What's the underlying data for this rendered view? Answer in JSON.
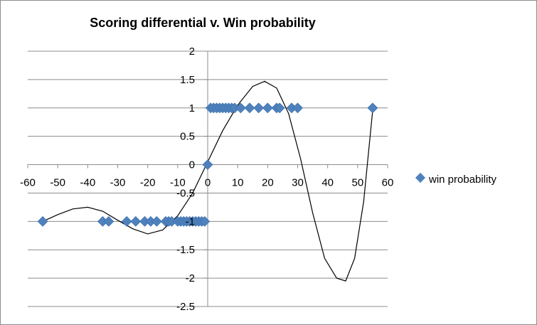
{
  "chart_data": {
    "type": "scatter",
    "title": "Scoring differential v. Win probability",
    "xlabel": "",
    "ylabel": "",
    "xlim": [
      -60,
      60
    ],
    "ylim": [
      -2.5,
      2
    ],
    "x_ticks": [
      -60,
      -50,
      -40,
      -30,
      -20,
      -10,
      0,
      10,
      20,
      30,
      40,
      50,
      60
    ],
    "y_ticks": [
      2,
      1.5,
      1,
      0.5,
      0,
      -0.5,
      -1,
      -1.5,
      -2,
      -2.5
    ],
    "x_tick_labels": [
      "-60",
      "-50",
      "-40",
      "-30",
      "-20",
      "-10",
      "0",
      "10",
      "20",
      "30",
      "40",
      "50",
      "60"
    ],
    "y_tick_labels": [
      "2",
      "1.5",
      "1",
      "0.5",
      "0",
      "-0.5",
      "-1",
      "-1.5",
      "-2",
      "-2.5"
    ],
    "grid": "horizontal",
    "legend_position": "right",
    "marker_color": "#4f81bd",
    "series": [
      {
        "name": "win probability",
        "marker": "diamond",
        "points": [
          {
            "x": -55,
            "y": -1
          },
          {
            "x": -35,
            "y": -1
          },
          {
            "x": -33,
            "y": -1
          },
          {
            "x": -27,
            "y": -1
          },
          {
            "x": -24,
            "y": -1
          },
          {
            "x": -21,
            "y": -1
          },
          {
            "x": -19,
            "y": -1
          },
          {
            "x": -17,
            "y": -1
          },
          {
            "x": -14,
            "y": -1
          },
          {
            "x": -13,
            "y": -1
          },
          {
            "x": -12,
            "y": -1
          },
          {
            "x": -10,
            "y": -1
          },
          {
            "x": -9,
            "y": -1
          },
          {
            "x": -8,
            "y": -1
          },
          {
            "x": -7,
            "y": -1
          },
          {
            "x": -6,
            "y": -1
          },
          {
            "x": -5,
            "y": -1
          },
          {
            "x": -4,
            "y": -1
          },
          {
            "x": -3,
            "y": -1
          },
          {
            "x": -2,
            "y": -1
          },
          {
            "x": -1,
            "y": -1
          },
          {
            "x": 0,
            "y": 0
          },
          {
            "x": 1,
            "y": 1
          },
          {
            "x": 2,
            "y": 1
          },
          {
            "x": 3,
            "y": 1
          },
          {
            "x": 4,
            "y": 1
          },
          {
            "x": 5,
            "y": 1
          },
          {
            "x": 6,
            "y": 1
          },
          {
            "x": 7,
            "y": 1
          },
          {
            "x": 8,
            "y": 1
          },
          {
            "x": 9,
            "y": 1
          },
          {
            "x": 11,
            "y": 1
          },
          {
            "x": 14,
            "y": 1
          },
          {
            "x": 17,
            "y": 1
          },
          {
            "x": 20,
            "y": 1
          },
          {
            "x": 23,
            "y": 1
          },
          {
            "x": 24,
            "y": 1
          },
          {
            "x": 28,
            "y": 1
          },
          {
            "x": 30,
            "y": 1
          },
          {
            "x": 55,
            "y": 1
          }
        ]
      }
    ],
    "trendline": {
      "type": "polynomial",
      "color": "#000000",
      "x_range": [
        -55,
        55
      ],
      "points": [
        {
          "x": -55,
          "y": -1.0
        },
        {
          "x": -50,
          "y": -0.88
        },
        {
          "x": -45,
          "y": -0.78
        },
        {
          "x": -40,
          "y": -0.75
        },
        {
          "x": -35,
          "y": -0.82
        },
        {
          "x": -30,
          "y": -0.98
        },
        {
          "x": -25,
          "y": -1.13
        },
        {
          "x": -20,
          "y": -1.22
        },
        {
          "x": -15,
          "y": -1.15
        },
        {
          "x": -10,
          "y": -0.9
        },
        {
          "x": -5,
          "y": -0.5
        },
        {
          "x": 0,
          "y": 0.05
        },
        {
          "x": 5,
          "y": 0.6
        },
        {
          "x": 10,
          "y": 1.05
        },
        {
          "x": 15,
          "y": 1.38
        },
        {
          "x": 19,
          "y": 1.47
        },
        {
          "x": 23,
          "y": 1.35
        },
        {
          "x": 27,
          "y": 0.9
        },
        {
          "x": 31,
          "y": 0.1
        },
        {
          "x": 35,
          "y": -0.85
        },
        {
          "x": 39,
          "y": -1.65
        },
        {
          "x": 43,
          "y": -2.0
        },
        {
          "x": 46,
          "y": -2.05
        },
        {
          "x": 49,
          "y": -1.65
        },
        {
          "x": 52,
          "y": -0.65
        },
        {
          "x": 55,
          "y": 0.95
        }
      ]
    }
  }
}
